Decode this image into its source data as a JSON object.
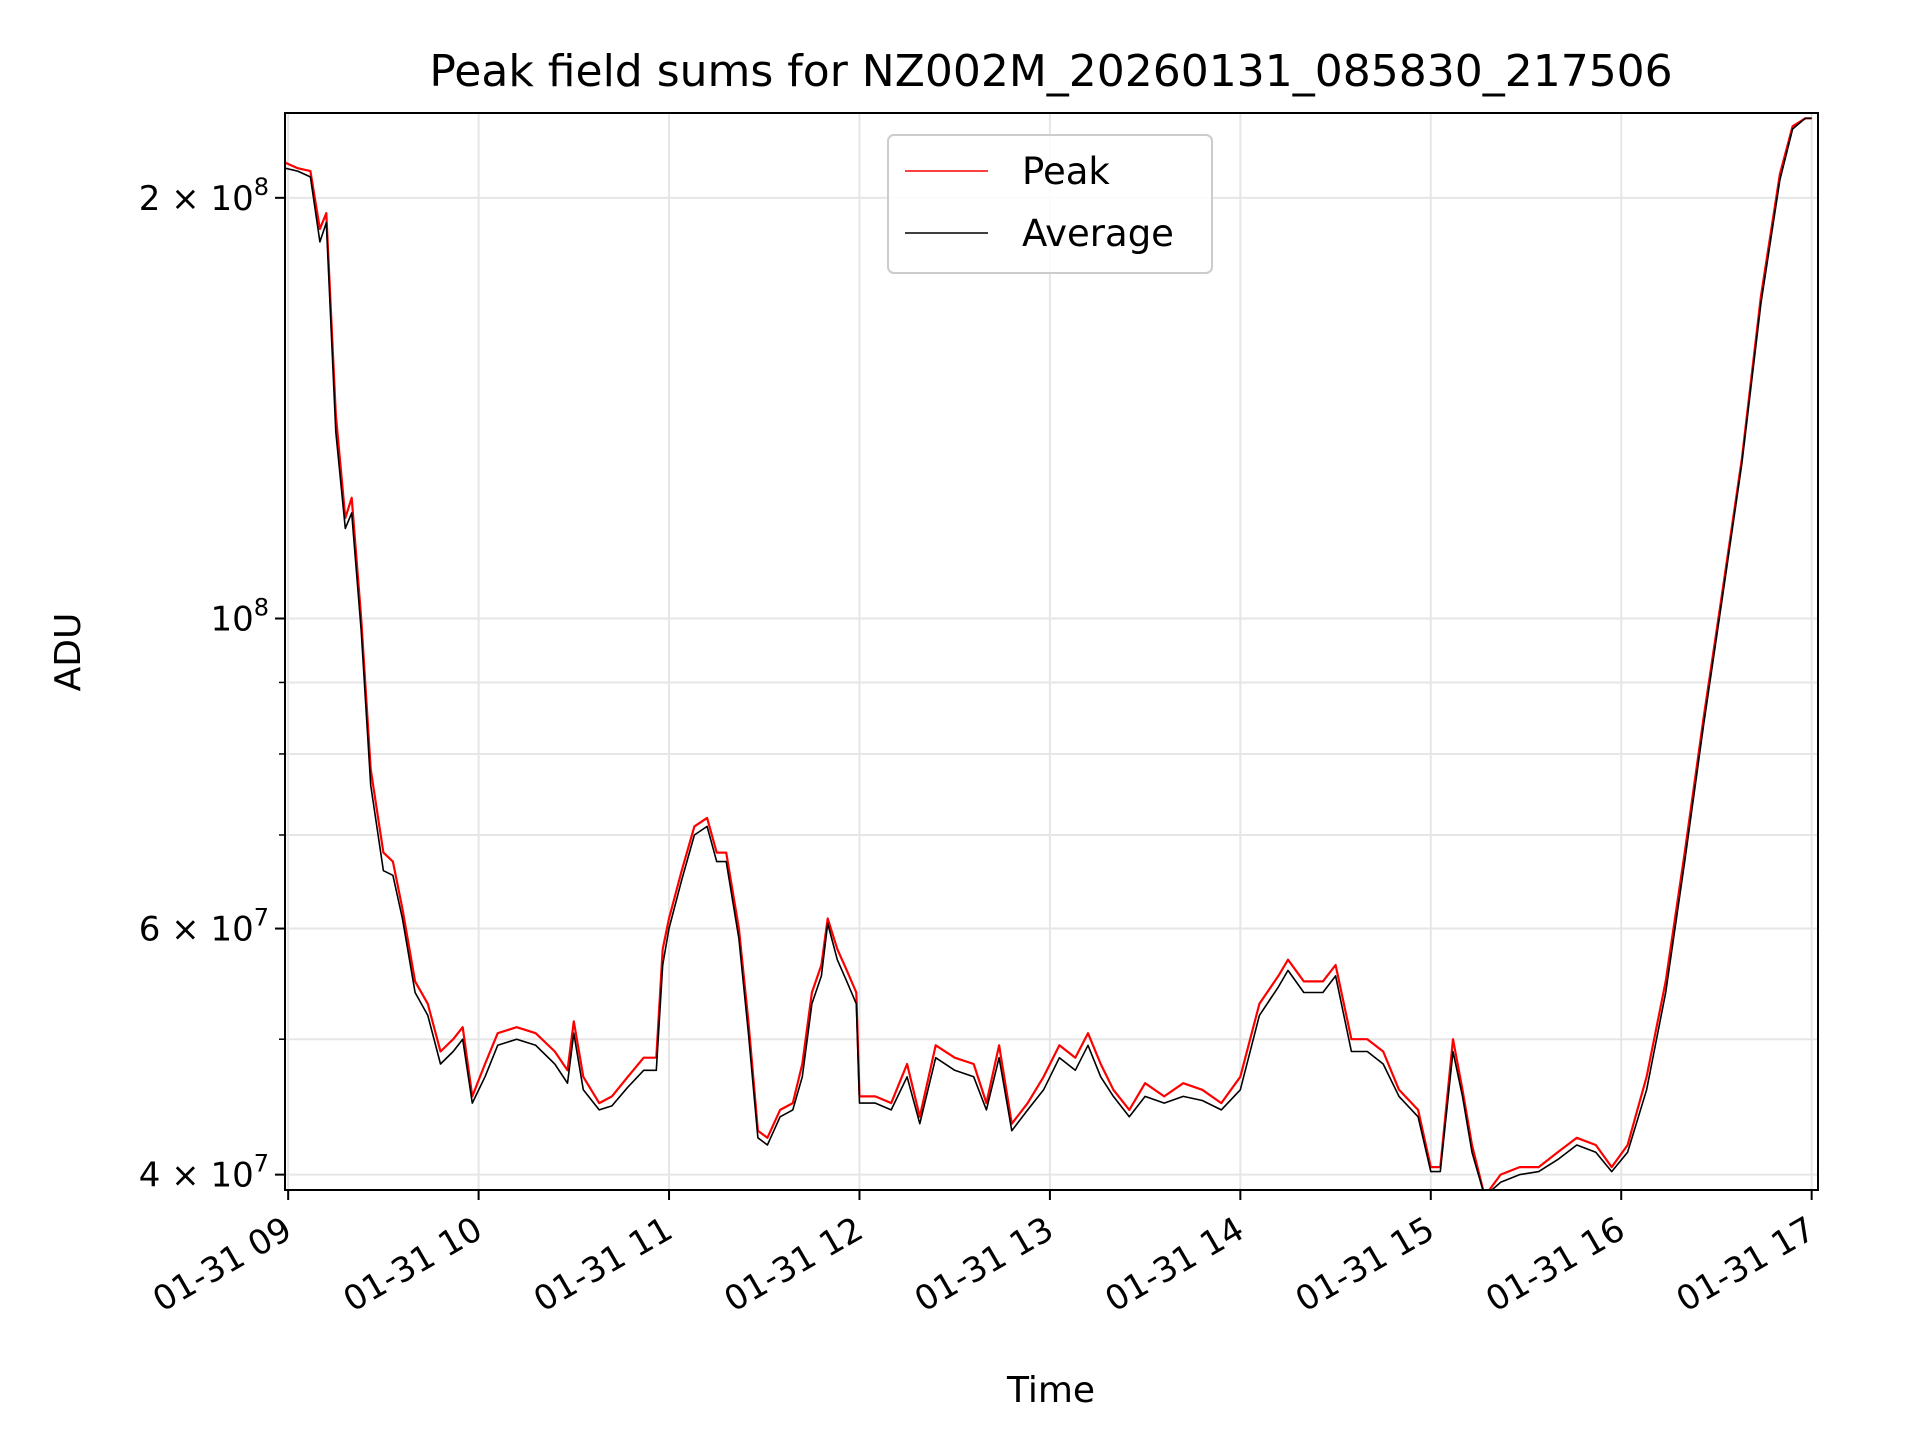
{
  "chart_data": {
    "type": "line",
    "title": "Peak field sums for NZ002M_20260131_085830_217506",
    "xlabel": "Time",
    "ylabel": "ADU",
    "yscale": "log",
    "ylim": [
      39000000,
      230000000
    ],
    "xlim": [
      "2026-01-31 08:59",
      "2026-01-31 17:02"
    ],
    "grid": true,
    "legend_position": "top-center",
    "x_ticks": [
      {
        "t": "2026-01-31 09:00",
        "label": "01-31 09"
      },
      {
        "t": "2026-01-31 10:00",
        "label": "01-31 10"
      },
      {
        "t": "2026-01-31 11:00",
        "label": "01-31 11"
      },
      {
        "t": "2026-01-31 12:00",
        "label": "01-31 12"
      },
      {
        "t": "2026-01-31 13:00",
        "label": "01-31 13"
      },
      {
        "t": "2026-01-31 14:00",
        "label": "01-31 14"
      },
      {
        "t": "2026-01-31 15:00",
        "label": "01-31 15"
      },
      {
        "t": "2026-01-31 16:00",
        "label": "01-31 16"
      },
      {
        "t": "2026-01-31 17:00",
        "label": "01-31 17"
      }
    ],
    "y_major_ticks": [
      {
        "value": 40000000,
        "base": "4 × 10",
        "exp": "7"
      },
      {
        "value": 60000000,
        "base": "6 × 10",
        "exp": "7"
      },
      {
        "value": 100000000,
        "base": "10",
        "exp": "8"
      },
      {
        "value": 200000000,
        "base": "2 × 10",
        "exp": "8"
      }
    ],
    "y_minor_ticks": [
      50000000,
      70000000,
      80000000,
      90000000
    ],
    "series": [
      {
        "name": "Peak",
        "color": "#ff0000",
        "points": [
          [
            "2026-01-31 08:59",
            212000000
          ],
          [
            "2026-01-31 09:03",
            210000000
          ],
          [
            "2026-01-31 09:07",
            209000000
          ],
          [
            "2026-01-31 09:10",
            190000000
          ],
          [
            "2026-01-31 09:12",
            195000000
          ],
          [
            "2026-01-31 09:15",
            140000000
          ],
          [
            "2026-01-31 09:18",
            118000000
          ],
          [
            "2026-01-31 09:20",
            122000000
          ],
          [
            "2026-01-31 09:23",
            100000000
          ],
          [
            "2026-01-31 09:26",
            78000000
          ],
          [
            "2026-01-31 09:30",
            68000000
          ],
          [
            "2026-01-31 09:33",
            67000000
          ],
          [
            "2026-01-31 09:36",
            62000000
          ],
          [
            "2026-01-31 09:40",
            55000000
          ],
          [
            "2026-01-31 09:44",
            53000000
          ],
          [
            "2026-01-31 09:48",
            49000000
          ],
          [
            "2026-01-31 09:52",
            50000000
          ],
          [
            "2026-01-31 09:55",
            51000000
          ],
          [
            "2026-01-31 09:58",
            45500000
          ],
          [
            "2026-01-31 10:02",
            48000000
          ],
          [
            "2026-01-31 10:06",
            50500000
          ],
          [
            "2026-01-31 10:12",
            51000000
          ],
          [
            "2026-01-31 10:18",
            50500000
          ],
          [
            "2026-01-31 10:24",
            49000000
          ],
          [
            "2026-01-31 10:28",
            47500000
          ],
          [
            "2026-01-31 10:30",
            51500000
          ],
          [
            "2026-01-31 10:33",
            47000000
          ],
          [
            "2026-01-31 10:38",
            45000000
          ],
          [
            "2026-01-31 10:42",
            45500000
          ],
          [
            "2026-01-31 10:47",
            47000000
          ],
          [
            "2026-01-31 10:52",
            48500000
          ],
          [
            "2026-01-31 10:56",
            48500000
          ],
          [
            "2026-01-31 10:58",
            58000000
          ],
          [
            "2026-01-31 11:00",
            61000000
          ],
          [
            "2026-01-31 11:04",
            66000000
          ],
          [
            "2026-01-31 11:08",
            71000000
          ],
          [
            "2026-01-31 11:12",
            72000000
          ],
          [
            "2026-01-31 11:15",
            68000000
          ],
          [
            "2026-01-31 11:18",
            68000000
          ],
          [
            "2026-01-31 11:22",
            60000000
          ],
          [
            "2026-01-31 11:25",
            51500000
          ],
          [
            "2026-01-31 11:28",
            43000000
          ],
          [
            "2026-01-31 11:31",
            42500000
          ],
          [
            "2026-01-31 11:35",
            44500000
          ],
          [
            "2026-01-31 11:39",
            45000000
          ],
          [
            "2026-01-31 11:42",
            48000000
          ],
          [
            "2026-01-31 11:45",
            54000000
          ],
          [
            "2026-01-31 11:48",
            56500000
          ],
          [
            "2026-01-31 11:50",
            61000000
          ],
          [
            "2026-01-31 11:53",
            58000000
          ],
          [
            "2026-01-31 11:56",
            56000000
          ],
          [
            "2026-01-31 11:59",
            54000000
          ],
          [
            "2026-01-31 12:00",
            45500000
          ],
          [
            "2026-01-31 12:05",
            45500000
          ],
          [
            "2026-01-31 12:10",
            45000000
          ],
          [
            "2026-01-31 12:15",
            48000000
          ],
          [
            "2026-01-31 12:19",
            44000000
          ],
          [
            "2026-01-31 12:24",
            49500000
          ],
          [
            "2026-01-31 12:30",
            48500000
          ],
          [
            "2026-01-31 12:36",
            48000000
          ],
          [
            "2026-01-31 12:40",
            45000000
          ],
          [
            "2026-01-31 12:44",
            49500000
          ],
          [
            "2026-01-31 12:48",
            43500000
          ],
          [
            "2026-01-31 12:53",
            45000000
          ],
          [
            "2026-01-31 12:58",
            47000000
          ],
          [
            "2026-01-31 13:03",
            49500000
          ],
          [
            "2026-01-31 13:08",
            48500000
          ],
          [
            "2026-01-31 13:12",
            50500000
          ],
          [
            "2026-01-31 13:16",
            48000000
          ],
          [
            "2026-01-31 13:20",
            46000000
          ],
          [
            "2026-01-31 13:25",
            44500000
          ],
          [
            "2026-01-31 13:30",
            46500000
          ],
          [
            "2026-01-31 13:36",
            45500000
          ],
          [
            "2026-01-31 13:42",
            46500000
          ],
          [
            "2026-01-31 13:48",
            46000000
          ],
          [
            "2026-01-31 13:54",
            45000000
          ],
          [
            "2026-01-31 14:00",
            47000000
          ],
          [
            "2026-01-31 14:06",
            53000000
          ],
          [
            "2026-01-31 14:12",
            55500000
          ],
          [
            "2026-01-31 14:15",
            57000000
          ],
          [
            "2026-01-31 14:20",
            55000000
          ],
          [
            "2026-01-31 14:26",
            55000000
          ],
          [
            "2026-01-31 14:30",
            56500000
          ],
          [
            "2026-01-31 14:35",
            50000000
          ],
          [
            "2026-01-31 14:40",
            50000000
          ],
          [
            "2026-01-31 14:45",
            49000000
          ],
          [
            "2026-01-31 14:50",
            46000000
          ],
          [
            "2026-01-31 14:56",
            44500000
          ],
          [
            "2026-01-31 15:00",
            40500000
          ],
          [
            "2026-01-31 15:03",
            40500000
          ],
          [
            "2026-01-31 15:07",
            50000000
          ],
          [
            "2026-01-31 15:10",
            46000000
          ],
          [
            "2026-01-31 15:13",
            42000000
          ],
          [
            "2026-01-31 15:17",
            38600000
          ],
          [
            "2026-01-31 15:22",
            40000000
          ],
          [
            "2026-01-31 15:28",
            40500000
          ],
          [
            "2026-01-31 15:34",
            40500000
          ],
          [
            "2026-01-31 15:40",
            41500000
          ],
          [
            "2026-01-31 15:46",
            42500000
          ],
          [
            "2026-01-31 15:52",
            42000000
          ],
          [
            "2026-01-31 15:57",
            40500000
          ],
          [
            "2026-01-31 16:02",
            42000000
          ],
          [
            "2026-01-31 16:08",
            47000000
          ],
          [
            "2026-01-31 16:14",
            55000000
          ],
          [
            "2026-01-31 16:20",
            68000000
          ],
          [
            "2026-01-31 16:26",
            85000000
          ],
          [
            "2026-01-31 16:32",
            105000000
          ],
          [
            "2026-01-31 16:38",
            130000000
          ],
          [
            "2026-01-31 16:44",
            170000000
          ],
          [
            "2026-01-31 16:50",
            208000000
          ],
          [
            "2026-01-31 16:54",
            225000000
          ],
          [
            "2026-01-31 16:58",
            228000000
          ],
          [
            "2026-01-31 17:00",
            228000000
          ]
        ]
      },
      {
        "name": "Average",
        "color": "#000000",
        "points": [
          [
            "2026-01-31 08:59",
            210000000
          ],
          [
            "2026-01-31 09:03",
            209000000
          ],
          [
            "2026-01-31 09:07",
            207000000
          ],
          [
            "2026-01-31 09:10",
            186000000
          ],
          [
            "2026-01-31 09:12",
            192000000
          ],
          [
            "2026-01-31 09:15",
            136000000
          ],
          [
            "2026-01-31 09:18",
            116000000
          ],
          [
            "2026-01-31 09:20",
            119000000
          ],
          [
            "2026-01-31 09:23",
            98000000
          ],
          [
            "2026-01-31 09:26",
            76000000
          ],
          [
            "2026-01-31 09:30",
            66000000
          ],
          [
            "2026-01-31 09:33",
            65500000
          ],
          [
            "2026-01-31 09:36",
            61000000
          ],
          [
            "2026-01-31 09:40",
            54000000
          ],
          [
            "2026-01-31 09:44",
            52000000
          ],
          [
            "2026-01-31 09:48",
            48000000
          ],
          [
            "2026-01-31 09:52",
            49000000
          ],
          [
            "2026-01-31 09:55",
            50000000
          ],
          [
            "2026-01-31 09:58",
            45000000
          ],
          [
            "2026-01-31 10:02",
            47000000
          ],
          [
            "2026-01-31 10:06",
            49500000
          ],
          [
            "2026-01-31 10:12",
            50000000
          ],
          [
            "2026-01-31 10:18",
            49500000
          ],
          [
            "2026-01-31 10:24",
            48000000
          ],
          [
            "2026-01-31 10:28",
            46500000
          ],
          [
            "2026-01-31 10:30",
            50500000
          ],
          [
            "2026-01-31 10:33",
            46000000
          ],
          [
            "2026-01-31 10:38",
            44500000
          ],
          [
            "2026-01-31 10:42",
            44800000
          ],
          [
            "2026-01-31 10:47",
            46200000
          ],
          [
            "2026-01-31 10:52",
            47500000
          ],
          [
            "2026-01-31 10:56",
            47500000
          ],
          [
            "2026-01-31 10:58",
            56500000
          ],
          [
            "2026-01-31 11:00",
            60000000
          ],
          [
            "2026-01-31 11:04",
            65000000
          ],
          [
            "2026-01-31 11:08",
            70000000
          ],
          [
            "2026-01-31 11:12",
            71000000
          ],
          [
            "2026-01-31 11:15",
            67000000
          ],
          [
            "2026-01-31 11:18",
            67000000
          ],
          [
            "2026-01-31 11:22",
            59000000
          ],
          [
            "2026-01-31 11:25",
            50500000
          ],
          [
            "2026-01-31 11:28",
            42500000
          ],
          [
            "2026-01-31 11:31",
            42000000
          ],
          [
            "2026-01-31 11:35",
            44000000
          ],
          [
            "2026-01-31 11:39",
            44500000
          ],
          [
            "2026-01-31 11:42",
            47000000
          ],
          [
            "2026-01-31 11:45",
            53000000
          ],
          [
            "2026-01-31 11:48",
            55500000
          ],
          [
            "2026-01-31 11:50",
            60500000
          ],
          [
            "2026-01-31 11:53",
            57000000
          ],
          [
            "2026-01-31 11:56",
            55000000
          ],
          [
            "2026-01-31 11:59",
            53000000
          ],
          [
            "2026-01-31 12:00",
            45000000
          ],
          [
            "2026-01-31 12:05",
            45000000
          ],
          [
            "2026-01-31 12:10",
            44500000
          ],
          [
            "2026-01-31 12:15",
            47000000
          ],
          [
            "2026-01-31 12:19",
            43500000
          ],
          [
            "2026-01-31 12:24",
            48500000
          ],
          [
            "2026-01-31 12:30",
            47500000
          ],
          [
            "2026-01-31 12:36",
            47000000
          ],
          [
            "2026-01-31 12:40",
            44500000
          ],
          [
            "2026-01-31 12:44",
            48500000
          ],
          [
            "2026-01-31 12:48",
            43000000
          ],
          [
            "2026-01-31 12:53",
            44500000
          ],
          [
            "2026-01-31 12:58",
            46000000
          ],
          [
            "2026-01-31 13:03",
            48500000
          ],
          [
            "2026-01-31 13:08",
            47500000
          ],
          [
            "2026-01-31 13:12",
            49500000
          ],
          [
            "2026-01-31 13:16",
            47000000
          ],
          [
            "2026-01-31 13:20",
            45500000
          ],
          [
            "2026-01-31 13:25",
            44000000
          ],
          [
            "2026-01-31 13:30",
            45500000
          ],
          [
            "2026-01-31 13:36",
            45000000
          ],
          [
            "2026-01-31 13:42",
            45500000
          ],
          [
            "2026-01-31 13:48",
            45200000
          ],
          [
            "2026-01-31 13:54",
            44500000
          ],
          [
            "2026-01-31 14:00",
            46000000
          ],
          [
            "2026-01-31 14:06",
            52000000
          ],
          [
            "2026-01-31 14:12",
            54500000
          ],
          [
            "2026-01-31 14:15",
            56000000
          ],
          [
            "2026-01-31 14:20",
            54000000
          ],
          [
            "2026-01-31 14:26",
            54000000
          ],
          [
            "2026-01-31 14:30",
            55500000
          ],
          [
            "2026-01-31 14:35",
            49000000
          ],
          [
            "2026-01-31 14:40",
            49000000
          ],
          [
            "2026-01-31 14:45",
            48000000
          ],
          [
            "2026-01-31 14:50",
            45500000
          ],
          [
            "2026-01-31 14:56",
            44000000
          ],
          [
            "2026-01-31 15:00",
            40200000
          ],
          [
            "2026-01-31 15:03",
            40200000
          ],
          [
            "2026-01-31 15:07",
            49000000
          ],
          [
            "2026-01-31 15:10",
            45500000
          ],
          [
            "2026-01-31 15:13",
            41500000
          ],
          [
            "2026-01-31 15:17",
            38600000
          ],
          [
            "2026-01-31 15:22",
            39500000
          ],
          [
            "2026-01-31 15:28",
            40000000
          ],
          [
            "2026-01-31 15:34",
            40200000
          ],
          [
            "2026-01-31 15:40",
            41000000
          ],
          [
            "2026-01-31 15:46",
            42000000
          ],
          [
            "2026-01-31 15:52",
            41500000
          ],
          [
            "2026-01-31 15:57",
            40200000
          ],
          [
            "2026-01-31 16:02",
            41500000
          ],
          [
            "2026-01-31 16:08",
            46000000
          ],
          [
            "2026-01-31 16:14",
            54000000
          ],
          [
            "2026-01-31 16:20",
            67000000
          ],
          [
            "2026-01-31 16:26",
            84000000
          ],
          [
            "2026-01-31 16:32",
            104000000
          ],
          [
            "2026-01-31 16:38",
            129000000
          ],
          [
            "2026-01-31 16:44",
            168000000
          ],
          [
            "2026-01-31 16:50",
            206000000
          ],
          [
            "2026-01-31 16:54",
            224000000
          ],
          [
            "2026-01-31 16:58",
            228000000
          ],
          [
            "2026-01-31 17:00",
            228000000
          ]
        ]
      }
    ]
  }
}
